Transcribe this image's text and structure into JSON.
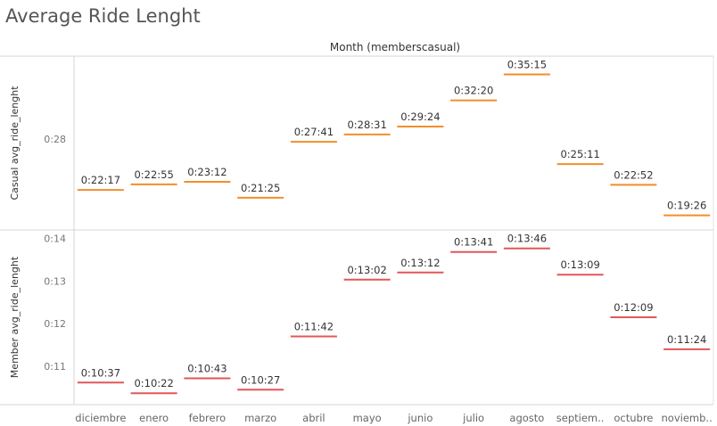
{
  "title": "Average Ride Lenght",
  "chart_data": {
    "type": "bar",
    "subtype": "gantt-marks",
    "column_header": "Month (memberscasual)",
    "categories": [
      "diciembre",
      "enero",
      "febrero",
      "marzo",
      "abril",
      "mayo",
      "junio",
      "julio",
      "agosto",
      "septiem..",
      "octubre",
      "noviemb.."
    ],
    "grid": false,
    "series": [
      {
        "row_label": "Casual avg_ride_lenght",
        "color": "#f28e2b",
        "values_minutes": [
          22.283,
          22.917,
          23.2,
          21.417,
          27.683,
          28.517,
          29.4,
          32.333,
          35.25,
          25.183,
          22.867,
          19.433
        ],
        "labels": [
          "0:22:17",
          "0:22:55",
          "0:23:12",
          "0:21:25",
          "0:27:41",
          "0:28:31",
          "0:29:24",
          "0:32:20",
          "0:35:15",
          "0:25:11",
          "0:22:52",
          "0:19:26"
        ],
        "y_ticks": [
          {
            "value": 28,
            "label": "0:28"
          }
        ],
        "ylim": [
          17.8,
          37.3
        ]
      },
      {
        "row_label": "Member avg_ride_lenght",
        "color": "#e15759",
        "values_minutes": [
          10.617,
          10.367,
          10.717,
          10.45,
          11.7,
          13.033,
          13.2,
          13.683,
          13.767,
          13.15,
          12.15,
          11.4
        ],
        "labels": [
          "0:10:37",
          "0:10:22",
          "0:10:43",
          "0:10:27",
          "0:11:42",
          "0:13:02",
          "0:13:12",
          "0:13:41",
          "0:13:46",
          "0:13:09",
          "0:12:09",
          "0:11:24"
        ],
        "y_ticks": [
          {
            "value": 11,
            "label": "0:11"
          },
          {
            "value": 12,
            "label": "0:12"
          },
          {
            "value": 13,
            "label": "0:13"
          },
          {
            "value": 14,
            "label": "0:14"
          }
        ],
        "ylim": [
          10.1,
          14.2
        ]
      }
    ]
  }
}
